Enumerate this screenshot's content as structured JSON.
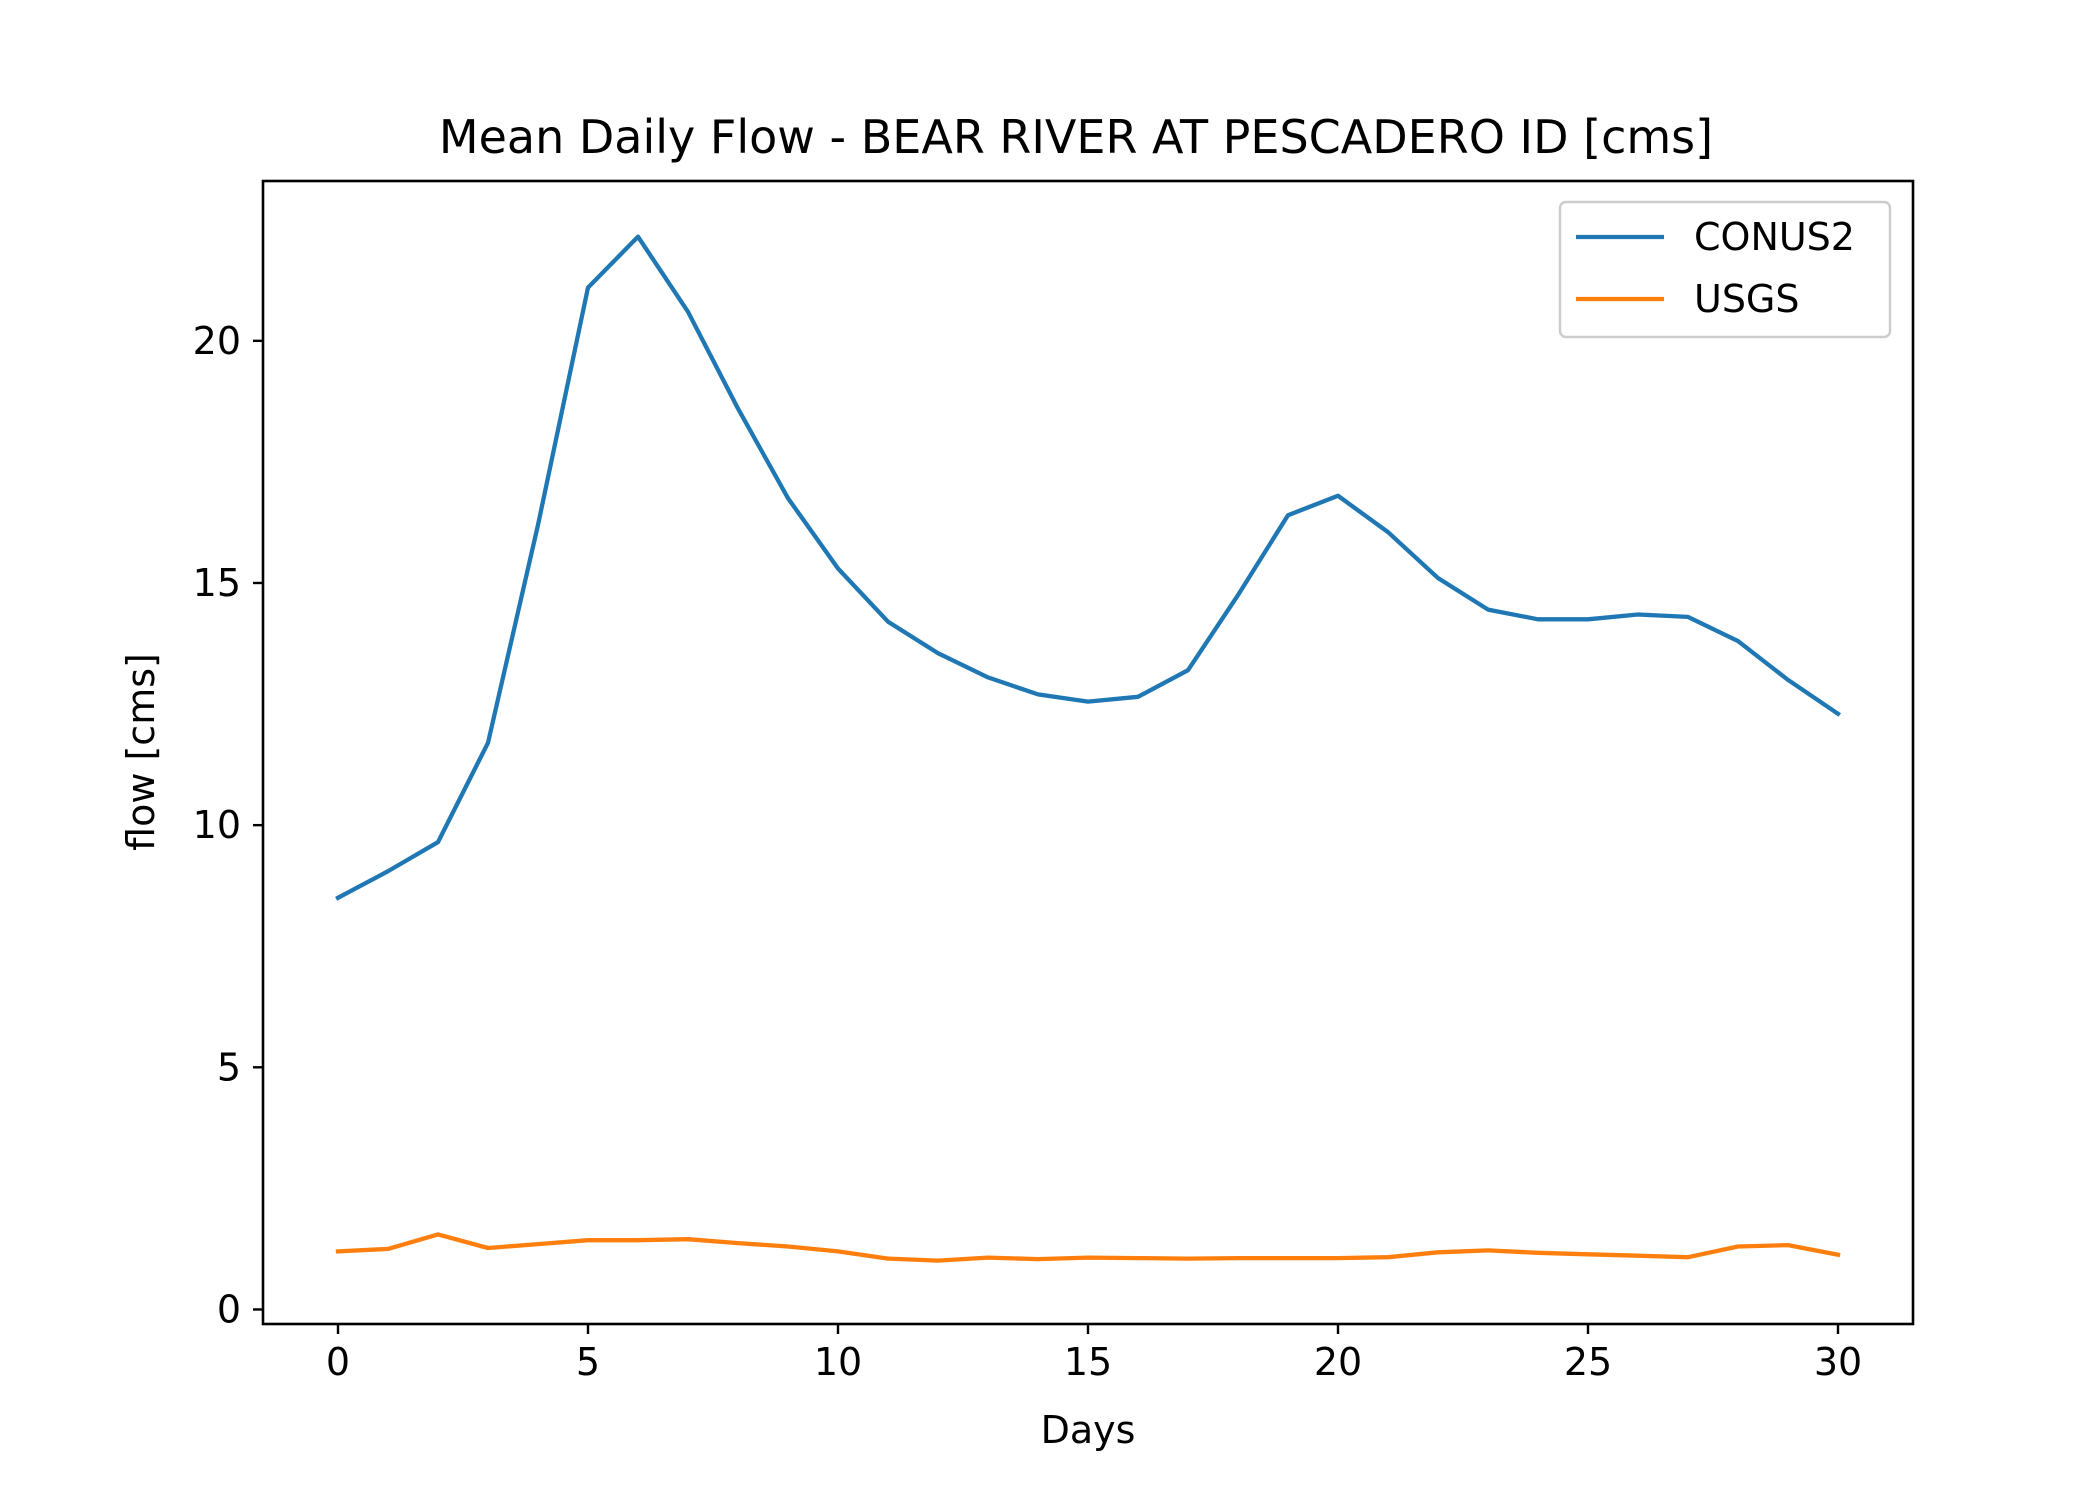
{
  "chart_data": {
    "type": "line",
    "title": "Mean Daily Flow - BEAR RIVER AT PESCADERO ID [cms]",
    "xlabel": "Days",
    "ylabel": "flow [cms]",
    "xlim": [
      -1.5,
      31.5
    ],
    "ylim": [
      -0.3,
      23.3
    ],
    "xticks": [
      0,
      5,
      10,
      15,
      20,
      25,
      30
    ],
    "yticks": [
      0,
      5,
      10,
      15,
      20
    ],
    "xtick_labels": [
      "0",
      "5",
      "10",
      "15",
      "20",
      "25",
      "30"
    ],
    "ytick_labels": [
      "0",
      "5",
      "10",
      "15",
      "20"
    ],
    "grid": false,
    "legend_position": "top-right",
    "x": [
      0,
      1,
      2,
      3,
      4,
      5,
      6,
      7,
      8,
      9,
      10,
      11,
      12,
      13,
      14,
      15,
      16,
      17,
      18,
      19,
      20,
      21,
      22,
      23,
      24,
      25,
      26,
      27,
      28,
      29,
      30
    ],
    "series": [
      {
        "name": "CONUS2",
        "color": "#1f77b4",
        "values": [
          8.5,
          9.05,
          9.65,
          11.7,
          16.2,
          21.1,
          22.15,
          20.6,
          18.6,
          16.75,
          15.3,
          14.2,
          13.55,
          13.05,
          12.7,
          12.55,
          12.65,
          13.2,
          14.75,
          16.4,
          16.8,
          16.05,
          15.1,
          14.45,
          14.25,
          14.25,
          14.35,
          14.3,
          13.8,
          13.0,
          12.3
        ]
      },
      {
        "name": "USGS",
        "color": "#ff7f0e",
        "values": [
          1.2,
          1.25,
          1.55,
          1.27,
          1.35,
          1.43,
          1.43,
          1.45,
          1.37,
          1.3,
          1.2,
          1.05,
          1.01,
          1.07,
          1.04,
          1.07,
          1.06,
          1.05,
          1.06,
          1.06,
          1.06,
          1.08,
          1.18,
          1.22,
          1.17,
          1.14,
          1.11,
          1.08,
          1.3,
          1.33,
          1.13
        ]
      }
    ]
  }
}
